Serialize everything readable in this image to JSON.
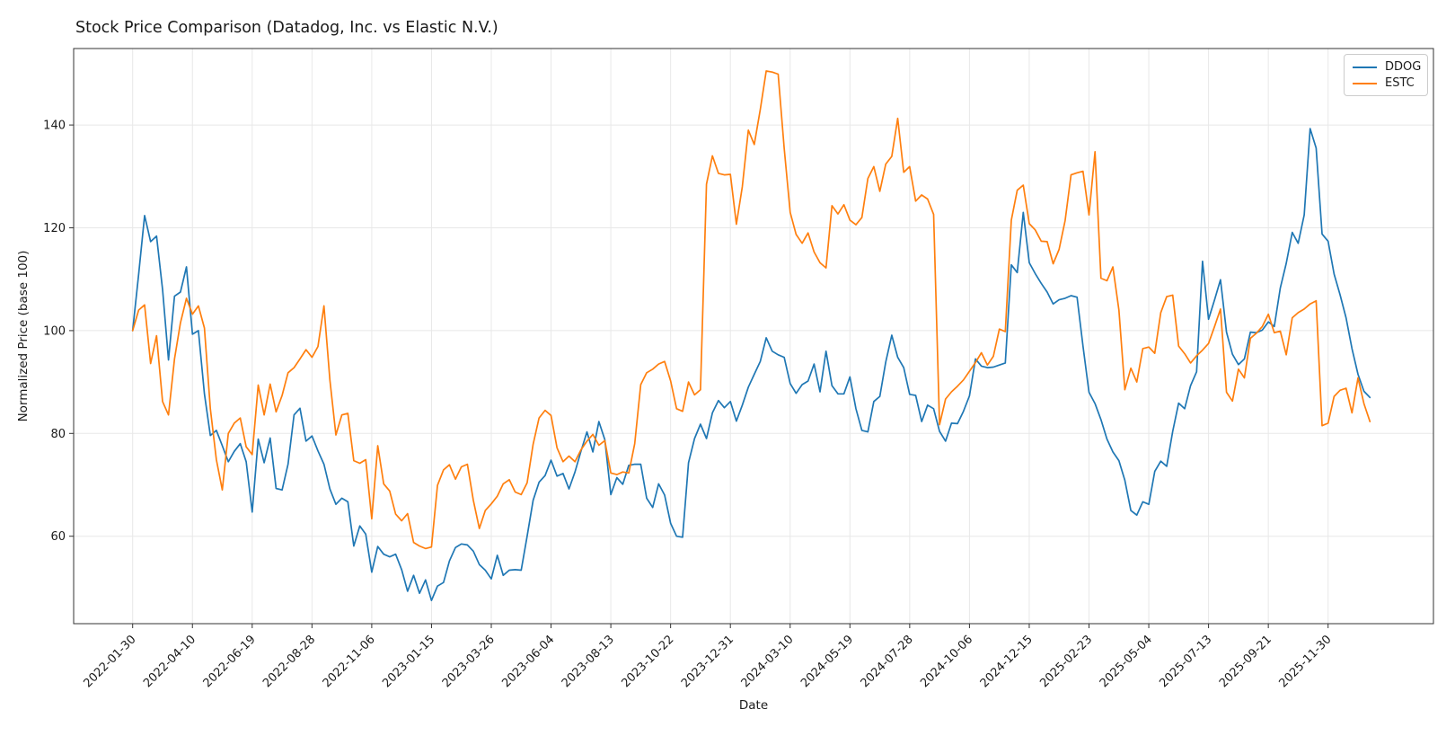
{
  "title": "Stock Price Comparison (Datadog, Inc. vs Elastic N.V.)",
  "legend": {
    "entries": [
      {
        "label": "DDOG",
        "color": "#1f77b4"
      },
      {
        "label": "ESTC",
        "color": "#ff7f0e"
      }
    ]
  },
  "chart_data": {
    "type": "line",
    "title": "Stock Price Comparison (Datadog, Inc. vs Elastic N.V.)",
    "xlabel": "Date",
    "ylabel": "Normalized Price (base 100)",
    "grid": true,
    "legend_position": "upper right",
    "start_date": "2022-01-30",
    "interval_days": 7,
    "x_tick_labels": [
      "2022-01-30",
      "2022-04-10",
      "2022-06-19",
      "2022-08-28",
      "2022-11-06",
      "2023-01-15",
      "2023-03-26",
      "2023-06-04",
      "2023-08-13",
      "2023-10-22",
      "2023-12-31",
      "2024-03-10",
      "2024-05-19",
      "2024-07-28",
      "2024-10-06",
      "2024-12-15",
      "2025-02-23",
      "2025-05-04",
      "2025-07-13",
      "2025-09-21",
      "2025-11-30"
    ],
    "x_tick_interval_weeks": 10,
    "y_ticks": [
      60,
      80,
      100,
      120,
      140
    ],
    "ylim": [
      43,
      155
    ],
    "series": [
      {
        "name": "DDOG",
        "color": "#1f77b4",
        "values": [
          100,
          111,
          122.4,
          117.3,
          118.4,
          108,
          94.3,
          106.7,
          107.5,
          112.4,
          99.3,
          100,
          87.7,
          79.6,
          80.6,
          77.6,
          74.5,
          76.5,
          78,
          74.5,
          64.7,
          78.9,
          74.3,
          79.1,
          69.3,
          69,
          74,
          83.6,
          84.9,
          78.5,
          79.5,
          76.6,
          74,
          69.2,
          66.2,
          67.4,
          66.7,
          58.1,
          62,
          60.4,
          53,
          58,
          56.5,
          56,
          56.5,
          53.5,
          49.3,
          52.4,
          48.9,
          51.5,
          47.5,
          50.3,
          51,
          55.2,
          57.8,
          58.5,
          58.3,
          57.1,
          54.5,
          53.4,
          51.7,
          56.3,
          52.4,
          53.4,
          53.5,
          53.4,
          60,
          67,
          70.5,
          71.8,
          74.8,
          71.7,
          72.2,
          69.2,
          72.5,
          76.5,
          80.3,
          76.4,
          82.3,
          78.8,
          68.1,
          71.4,
          70.1,
          73.8,
          74,
          74,
          67.4,
          65.6,
          70.2,
          68,
          62.5,
          60,
          59.8,
          74.3,
          79,
          81.8,
          79,
          84,
          86.4,
          85,
          86.2,
          82.4,
          85.5,
          89,
          91.5,
          94,
          98.6,
          96,
          95.3,
          94.8,
          89.7,
          87.8,
          89.5,
          90.2,
          93.5,
          88.1,
          96,
          89.3,
          87.7,
          87.7,
          91,
          84.8,
          80.6,
          80.3,
          86.2,
          87.2,
          93.9,
          99.1,
          94.8,
          92.8,
          87.6,
          87.4,
          82.3,
          85.5,
          84.8,
          80.4,
          78.5,
          82,
          81.9,
          84.3,
          87.3,
          94.5,
          93.1,
          92.8,
          92.9,
          93.3,
          93.7,
          112.8,
          111.3,
          123,
          113.2,
          111.1,
          109.2,
          107.5,
          105.2,
          106,
          106.3,
          106.8,
          106.5,
          97,
          88,
          85.8,
          82.7,
          78.9,
          76.4,
          74.7,
          70.9,
          65,
          64.1,
          66.7,
          66.2,
          72.6,
          74.6,
          73.6,
          80.4,
          85.9,
          84.8,
          89.3,
          92,
          113.5,
          102.2,
          106,
          109.9,
          99.7,
          95.4,
          93.4,
          94.5,
          99.7,
          99.6,
          100.1,
          101.7,
          100.8,
          108.3,
          113.1,
          119.1,
          117,
          122.5,
          139.3,
          135.5,
          118.8,
          117.4,
          111,
          107,
          102.5,
          96.5,
          91.5,
          88.2,
          87
        ]
      },
      {
        "name": "ESTC",
        "color": "#ff7f0e",
        "values": [
          100,
          104,
          105,
          93.6,
          99,
          86.2,
          83.6,
          94.5,
          101.5,
          106.3,
          103.2,
          104.8,
          100.5,
          84.8,
          74.9,
          69,
          80,
          82,
          83,
          77.4,
          75.9,
          89.4,
          83.6,
          89.6,
          84.2,
          87.4,
          91.8,
          92.8,
          94.5,
          96.3,
          94.8,
          96.9,
          104.8,
          90.4,
          79.7,
          83.6,
          83.9,
          74.7,
          74.2,
          74.9,
          63.4,
          77.6,
          70.2,
          68.8,
          64.3,
          63,
          64.4,
          58.8,
          58.1,
          57.6,
          57.9,
          69.9,
          72.9,
          73.9,
          71.1,
          73.5,
          74,
          67,
          61.5,
          65,
          66.3,
          67.8,
          70.2,
          71,
          68.6,
          68.1,
          70.4,
          77.9,
          83,
          84.5,
          83.5,
          77.2,
          74.5,
          75.6,
          74.5,
          76.8,
          78.5,
          79.8,
          77.7,
          78.6,
          72.3,
          72,
          72.5,
          72.3,
          78,
          89.5,
          91.8,
          92.5,
          93.5,
          94,
          90.2,
          84.8,
          84.3,
          90,
          87.5,
          88.5,
          128.5,
          134,
          130.6,
          130.3,
          130.4,
          120.7,
          128,
          139,
          136.2,
          143,
          150.5,
          150.3,
          149.9,
          135.5,
          123,
          118.7,
          117,
          119,
          115.3,
          113.2,
          112.2,
          124.3,
          122.7,
          124.5,
          121.5,
          120.6,
          122,
          129.6,
          131.9,
          127.1,
          132.4,
          133.9,
          141.3,
          130.8,
          131.9,
          125.2,
          126.4,
          125.6,
          122.6,
          81.7,
          86.7,
          88.1,
          89.2,
          90.4,
          92.1,
          93.8,
          95.7,
          93.3,
          95,
          100.3,
          99.8,
          121.5,
          127.3,
          128.3,
          120.8,
          119.6,
          117.4,
          117.3,
          113,
          115.8,
          121.4,
          130.3,
          130.7,
          131,
          122.5,
          134.8,
          110.2,
          109.7,
          112.4,
          104,
          88.5,
          92.7,
          90,
          96.5,
          96.8,
          95.6,
          103.5,
          106.6,
          106.9,
          97,
          95.5,
          93.7,
          95.1,
          96.2,
          97.5,
          100.8,
          104.2,
          88,
          86.3,
          92.5,
          90.8,
          98.5,
          99.5,
          100.8,
          103.2,
          99.6,
          99.9,
          95.3,
          102.5,
          103.5,
          104.2,
          105.2,
          105.8,
          81.5,
          82,
          87.2,
          88.4,
          88.8,
          84,
          90.8,
          85.8,
          82.3
        ]
      }
    ]
  }
}
